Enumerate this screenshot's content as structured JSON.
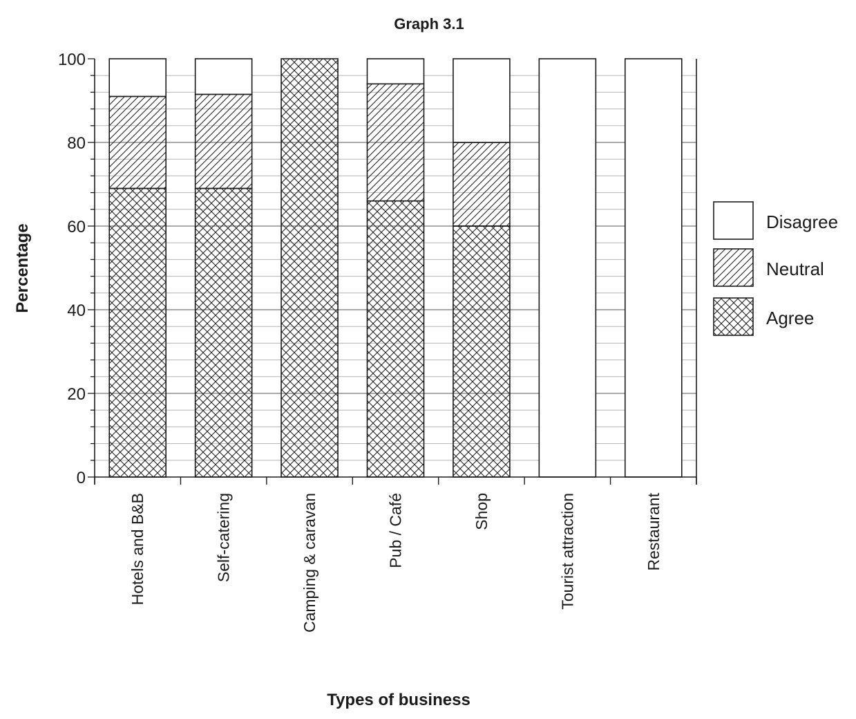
{
  "chart_data": {
    "type": "bar",
    "stacked": true,
    "title": "Graph 3.1",
    "xlabel": "Types of business",
    "ylabel": "Percentage",
    "ylim": [
      0,
      100
    ],
    "yticks": [
      0,
      20,
      40,
      60,
      80,
      100
    ],
    "grid": true,
    "legend_position": "right",
    "categories": [
      "Hotels and B&B",
      "Self-catering",
      "Camping & caravan",
      "Pub / Café",
      "Shop",
      "Tourist attraction",
      "Restaurant"
    ],
    "series": [
      {
        "name": "Agree",
        "pattern": "crosshatch",
        "values": [
          69,
          69,
          100,
          66,
          60,
          0,
          0
        ]
      },
      {
        "name": "Neutral",
        "pattern": "diagonal",
        "values": [
          22,
          22.5,
          0,
          28,
          20,
          0,
          0
        ]
      },
      {
        "name": "Disagree",
        "pattern": "none",
        "values": [
          9,
          8.5,
          0,
          6,
          20,
          100,
          100
        ]
      }
    ],
    "legend_order": [
      "Disagree",
      "Neutral",
      "Agree"
    ]
  }
}
